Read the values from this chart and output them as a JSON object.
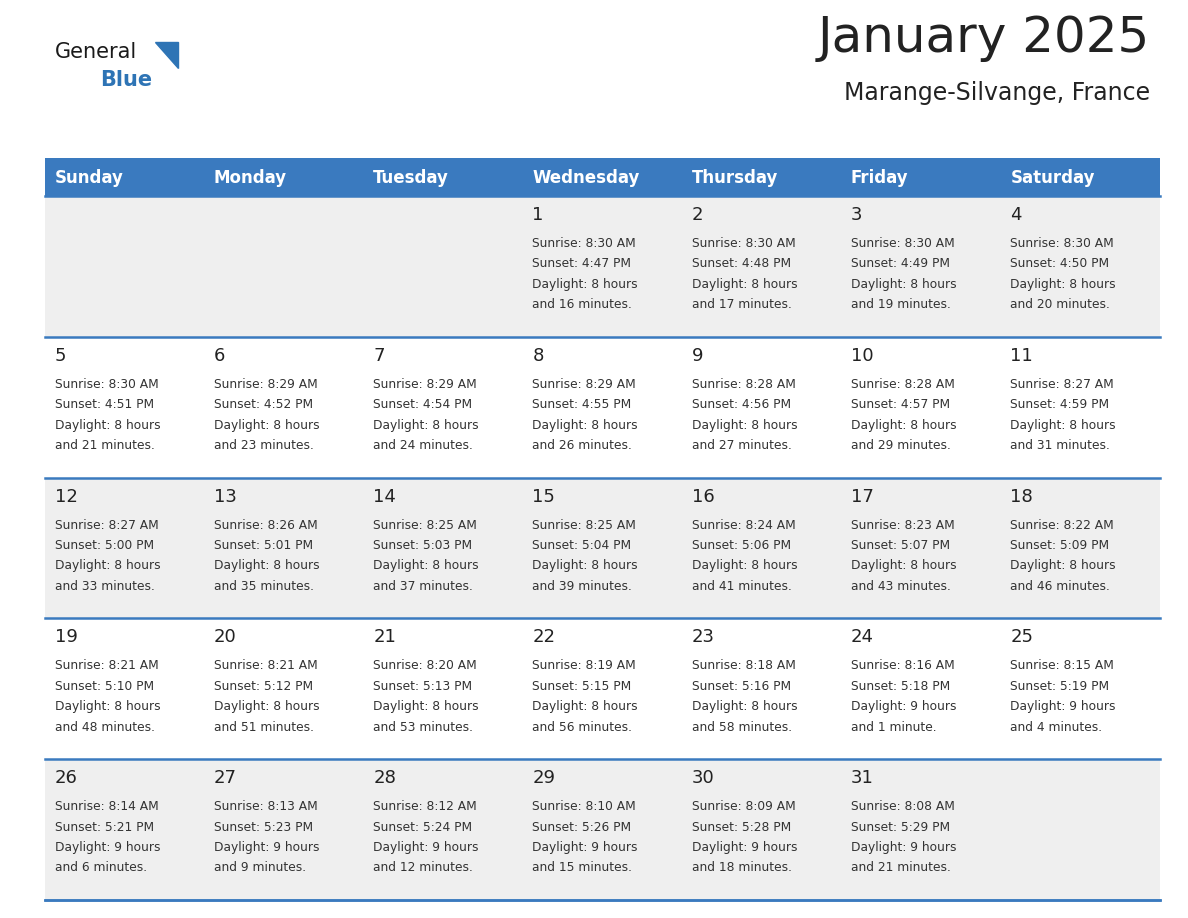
{
  "title": "January 2025",
  "subtitle": "Marange-Silvange, France",
  "header_color": "#3A7ABF",
  "header_text_color": "#FFFFFF",
  "day_names": [
    "Sunday",
    "Monday",
    "Tuesday",
    "Wednesday",
    "Thursday",
    "Friday",
    "Saturday"
  ],
  "bg_color": "#FFFFFF",
  "cell_bg_even": "#EFEFEF",
  "cell_bg_odd": "#FFFFFF",
  "cell_border_color": "#3A7ABF",
  "day_number_color": "#222222",
  "text_color": "#333333",
  "logo_general_color": "#1a1a1a",
  "logo_blue_color": "#2E74B5",
  "title_fontsize": 36,
  "subtitle_fontsize": 17,
  "header_fontsize": 12,
  "day_num_fontsize": 13,
  "cell_text_fontsize": 8.8,
  "weeks": [
    [
      {
        "date": "",
        "sunrise": "",
        "sunset": "",
        "daylight": ""
      },
      {
        "date": "",
        "sunrise": "",
        "sunset": "",
        "daylight": ""
      },
      {
        "date": "",
        "sunrise": "",
        "sunset": "",
        "daylight": ""
      },
      {
        "date": "1",
        "sunrise": "8:30 AM",
        "sunset": "4:47 PM",
        "daylight": "8 hours\nand 16 minutes."
      },
      {
        "date": "2",
        "sunrise": "8:30 AM",
        "sunset": "4:48 PM",
        "daylight": "8 hours\nand 17 minutes."
      },
      {
        "date": "3",
        "sunrise": "8:30 AM",
        "sunset": "4:49 PM",
        "daylight": "8 hours\nand 19 minutes."
      },
      {
        "date": "4",
        "sunrise": "8:30 AM",
        "sunset": "4:50 PM",
        "daylight": "8 hours\nand 20 minutes."
      }
    ],
    [
      {
        "date": "5",
        "sunrise": "8:30 AM",
        "sunset": "4:51 PM",
        "daylight": "8 hours\nand 21 minutes."
      },
      {
        "date": "6",
        "sunrise": "8:29 AM",
        "sunset": "4:52 PM",
        "daylight": "8 hours\nand 23 minutes."
      },
      {
        "date": "7",
        "sunrise": "8:29 AM",
        "sunset": "4:54 PM",
        "daylight": "8 hours\nand 24 minutes."
      },
      {
        "date": "8",
        "sunrise": "8:29 AM",
        "sunset": "4:55 PM",
        "daylight": "8 hours\nand 26 minutes."
      },
      {
        "date": "9",
        "sunrise": "8:28 AM",
        "sunset": "4:56 PM",
        "daylight": "8 hours\nand 27 minutes."
      },
      {
        "date": "10",
        "sunrise": "8:28 AM",
        "sunset": "4:57 PM",
        "daylight": "8 hours\nand 29 minutes."
      },
      {
        "date": "11",
        "sunrise": "8:27 AM",
        "sunset": "4:59 PM",
        "daylight": "8 hours\nand 31 minutes."
      }
    ],
    [
      {
        "date": "12",
        "sunrise": "8:27 AM",
        "sunset": "5:00 PM",
        "daylight": "8 hours\nand 33 minutes."
      },
      {
        "date": "13",
        "sunrise": "8:26 AM",
        "sunset": "5:01 PM",
        "daylight": "8 hours\nand 35 minutes."
      },
      {
        "date": "14",
        "sunrise": "8:25 AM",
        "sunset": "5:03 PM",
        "daylight": "8 hours\nand 37 minutes."
      },
      {
        "date": "15",
        "sunrise": "8:25 AM",
        "sunset": "5:04 PM",
        "daylight": "8 hours\nand 39 minutes."
      },
      {
        "date": "16",
        "sunrise": "8:24 AM",
        "sunset": "5:06 PM",
        "daylight": "8 hours\nand 41 minutes."
      },
      {
        "date": "17",
        "sunrise": "8:23 AM",
        "sunset": "5:07 PM",
        "daylight": "8 hours\nand 43 minutes."
      },
      {
        "date": "18",
        "sunrise": "8:22 AM",
        "sunset": "5:09 PM",
        "daylight": "8 hours\nand 46 minutes."
      }
    ],
    [
      {
        "date": "19",
        "sunrise": "8:21 AM",
        "sunset": "5:10 PM",
        "daylight": "8 hours\nand 48 minutes."
      },
      {
        "date": "20",
        "sunrise": "8:21 AM",
        "sunset": "5:12 PM",
        "daylight": "8 hours\nand 51 minutes."
      },
      {
        "date": "21",
        "sunrise": "8:20 AM",
        "sunset": "5:13 PM",
        "daylight": "8 hours\nand 53 minutes."
      },
      {
        "date": "22",
        "sunrise": "8:19 AM",
        "sunset": "5:15 PM",
        "daylight": "8 hours\nand 56 minutes."
      },
      {
        "date": "23",
        "sunrise": "8:18 AM",
        "sunset": "5:16 PM",
        "daylight": "8 hours\nand 58 minutes."
      },
      {
        "date": "24",
        "sunrise": "8:16 AM",
        "sunset": "5:18 PM",
        "daylight": "9 hours\nand 1 minute."
      },
      {
        "date": "25",
        "sunrise": "8:15 AM",
        "sunset": "5:19 PM",
        "daylight": "9 hours\nand 4 minutes."
      }
    ],
    [
      {
        "date": "26",
        "sunrise": "8:14 AM",
        "sunset": "5:21 PM",
        "daylight": "9 hours\nand 6 minutes."
      },
      {
        "date": "27",
        "sunrise": "8:13 AM",
        "sunset": "5:23 PM",
        "daylight": "9 hours\nand 9 minutes."
      },
      {
        "date": "28",
        "sunrise": "8:12 AM",
        "sunset": "5:24 PM",
        "daylight": "9 hours\nand 12 minutes."
      },
      {
        "date": "29",
        "sunrise": "8:10 AM",
        "sunset": "5:26 PM",
        "daylight": "9 hours\nand 15 minutes."
      },
      {
        "date": "30",
        "sunrise": "8:09 AM",
        "sunset": "5:28 PM",
        "daylight": "9 hours\nand 18 minutes."
      },
      {
        "date": "31",
        "sunrise": "8:08 AM",
        "sunset": "5:29 PM",
        "daylight": "9 hours\nand 21 minutes."
      },
      {
        "date": "",
        "sunrise": "",
        "sunset": "",
        "daylight": ""
      }
    ]
  ]
}
